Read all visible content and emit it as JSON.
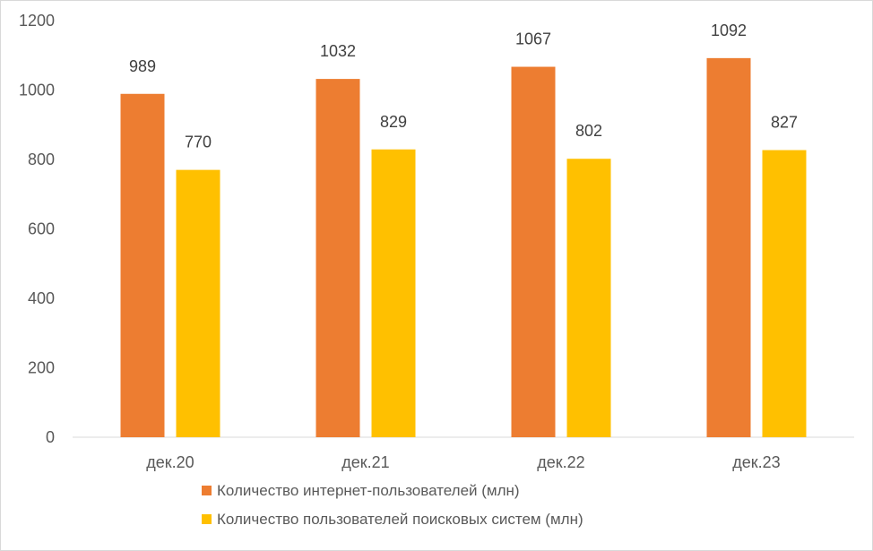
{
  "chart_data": {
    "type": "bar",
    "categories": [
      "дек.20",
      "дек.21",
      "дек.22",
      "дек.23"
    ],
    "series": [
      {
        "name": "Количество интернет-пользователей (млн)",
        "values": [
          989,
          1032,
          1067,
          1092
        ],
        "color": "#ED7D31"
      },
      {
        "name": "Количество пользователей поисковых систем (млн)",
        "values": [
          770,
          829,
          802,
          827
        ],
        "color": "#FFC000"
      }
    ],
    "ylim": [
      0,
      1200
    ],
    "yticks": [
      0,
      200,
      400,
      600,
      800,
      1000,
      1200
    ],
    "grid": false,
    "legend_position": "bottom"
  }
}
